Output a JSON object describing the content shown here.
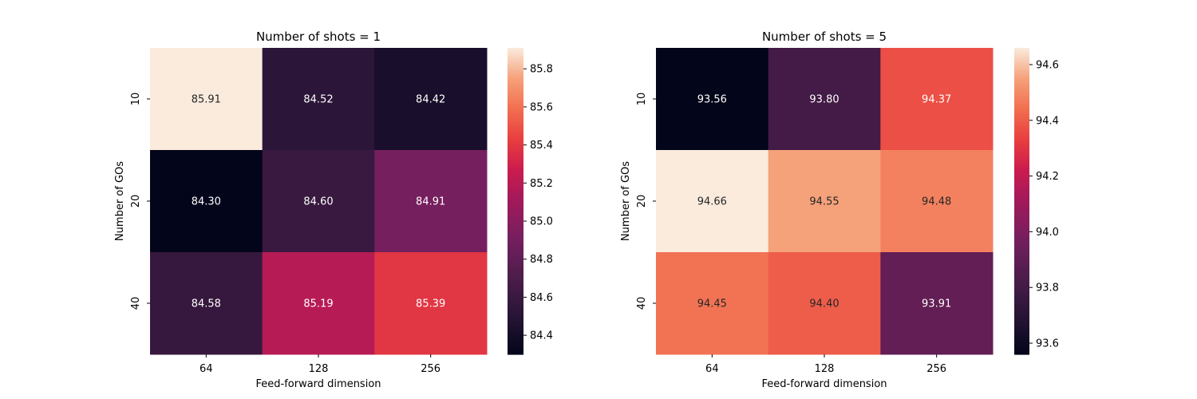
{
  "chart_data": [
    {
      "type": "heatmap",
      "title": "Number of shots = 1",
      "xlabel": "Feed-forward dimension",
      "ylabel": "Number of GOs",
      "x": [
        "64",
        "128",
        "256"
      ],
      "y": [
        "10",
        "20",
        "40"
      ],
      "values": [
        [
          85.91,
          84.52,
          84.42
        ],
        [
          84.3,
          84.6,
          84.91
        ],
        [
          84.58,
          85.19,
          85.39
        ]
      ],
      "value_labels": [
        [
          "85.91",
          "84.52",
          "84.42"
        ],
        [
          "84.30",
          "84.60",
          "84.91"
        ],
        [
          "84.58",
          "85.19",
          "85.39"
        ]
      ],
      "colorbar": {
        "range": [
          84.3,
          85.91
        ],
        "ticks": [
          84.4,
          84.6,
          84.8,
          85.0,
          85.2,
          85.4,
          85.6,
          85.8
        ],
        "tick_labels": [
          "84.4",
          "84.6",
          "84.8",
          "85.0",
          "85.2",
          "85.4",
          "85.6",
          "85.8"
        ]
      },
      "colormap": "rocket"
    },
    {
      "type": "heatmap",
      "title": "Number of shots = 5",
      "xlabel": "Feed-forward dimension",
      "ylabel": "Number of GOs",
      "x": [
        "64",
        "128",
        "256"
      ],
      "y": [
        "10",
        "20",
        "40"
      ],
      "values": [
        [
          93.56,
          93.8,
          94.37
        ],
        [
          94.66,
          94.55,
          94.48
        ],
        [
          94.45,
          94.4,
          93.91
        ]
      ],
      "value_labels": [
        [
          "93.56",
          "93.80",
          "94.37"
        ],
        [
          "94.66",
          "94.55",
          "94.48"
        ],
        [
          "94.45",
          "94.40",
          "93.91"
        ]
      ],
      "colorbar": {
        "range": [
          93.56,
          94.66
        ],
        "ticks": [
          93.6,
          93.8,
          94.0,
          94.2,
          94.4,
          94.6
        ],
        "tick_labels": [
          "93.6",
          "93.8",
          "94.0",
          "94.2",
          "94.4",
          "94.6"
        ]
      },
      "colormap": "rocket"
    }
  ]
}
